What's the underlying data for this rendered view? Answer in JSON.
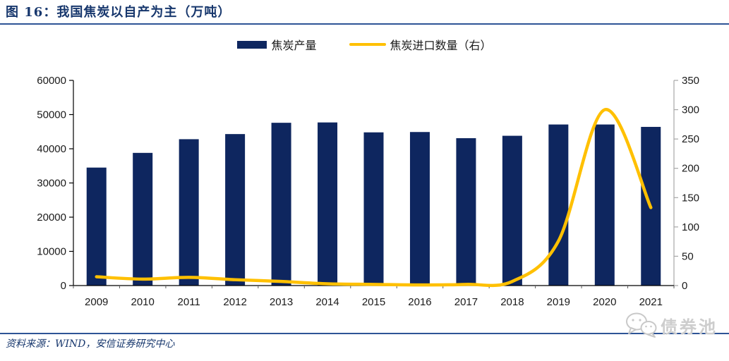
{
  "figure": {
    "title": "图 16：我国焦炭以自产为主（万吨）",
    "source": "资料来源：WIND，安信证券研究中心",
    "watermark": "债券池"
  },
  "legend": {
    "items": [
      {
        "label": "焦炭产量",
        "type": "bar",
        "color": "#0e265f"
      },
      {
        "label": "焦炭进口数量（右）",
        "type": "line",
        "color": "#ffc000"
      }
    ]
  },
  "colors": {
    "bar": "#0e265f",
    "line": "#ffc000",
    "title_blue": "#17376d",
    "rule_blue": "#2e5496",
    "axis_black": "#000000",
    "right_axis_gray": "#a6a6a6",
    "tick_gray": "#595959",
    "label_text": "#1a1a1a",
    "watermark_gray": "#cdcdcd"
  },
  "chart_data": {
    "type": "bar",
    "subtype": "bar+line combo",
    "title": "我国焦炭以自产为主（万吨）",
    "categories": [
      "2009",
      "2010",
      "2011",
      "2012",
      "2013",
      "2014",
      "2015",
      "2016",
      "2017",
      "2018",
      "2019",
      "2020",
      "2021"
    ],
    "series": [
      {
        "name": "焦炭产量",
        "type": "bar",
        "axis": "left",
        "color": "#0e265f",
        "values": [
          34500,
          38800,
          42800,
          44300,
          47600,
          47700,
          44800,
          44900,
          43100,
          43800,
          47100,
          47100,
          46400
        ]
      },
      {
        "name": "焦炭进口数量（右）",
        "type": "line",
        "axis": "right",
        "color": "#ffc000",
        "smooth": true,
        "values": [
          15,
          11,
          14,
          10,
          7,
          3,
          2,
          1,
          2,
          7,
          76,
          300,
          133
        ]
      }
    ],
    "left_axis": {
      "min": 0,
      "max": 60000,
      "step": 10000,
      "ticks": [
        0,
        10000,
        20000,
        30000,
        40000,
        50000,
        60000
      ],
      "tick_labels": [
        "0",
        "10000",
        "20000",
        "30000",
        "40000",
        "50000",
        "60000"
      ]
    },
    "right_axis": {
      "min": 0,
      "max": 350,
      "step": 50,
      "ticks": [
        0,
        50,
        100,
        150,
        200,
        250,
        300,
        350
      ],
      "tick_labels": [
        "0",
        "50",
        "100",
        "150",
        "200",
        "250",
        "300",
        "350"
      ]
    },
    "grid": false,
    "legend_position": "top"
  }
}
